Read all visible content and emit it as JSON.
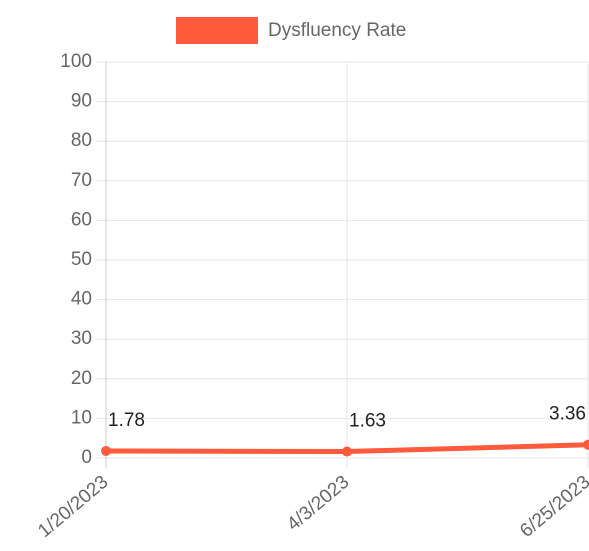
{
  "chart_data": {
    "type": "line",
    "categories": [
      "1/20/2023",
      "4/3/2023",
      "6/25/2023"
    ],
    "series": [
      {
        "name": "Dysfluency Rate",
        "color": "#ff5a3c",
        "values": [
          1.78,
          1.63,
          3.36
        ]
      }
    ],
    "ylim": [
      0,
      100
    ],
    "yticks": [
      0,
      10,
      20,
      30,
      40,
      50,
      60,
      70,
      80,
      90,
      100
    ],
    "grid": true,
    "legend": "top",
    "data_labels": true
  }
}
